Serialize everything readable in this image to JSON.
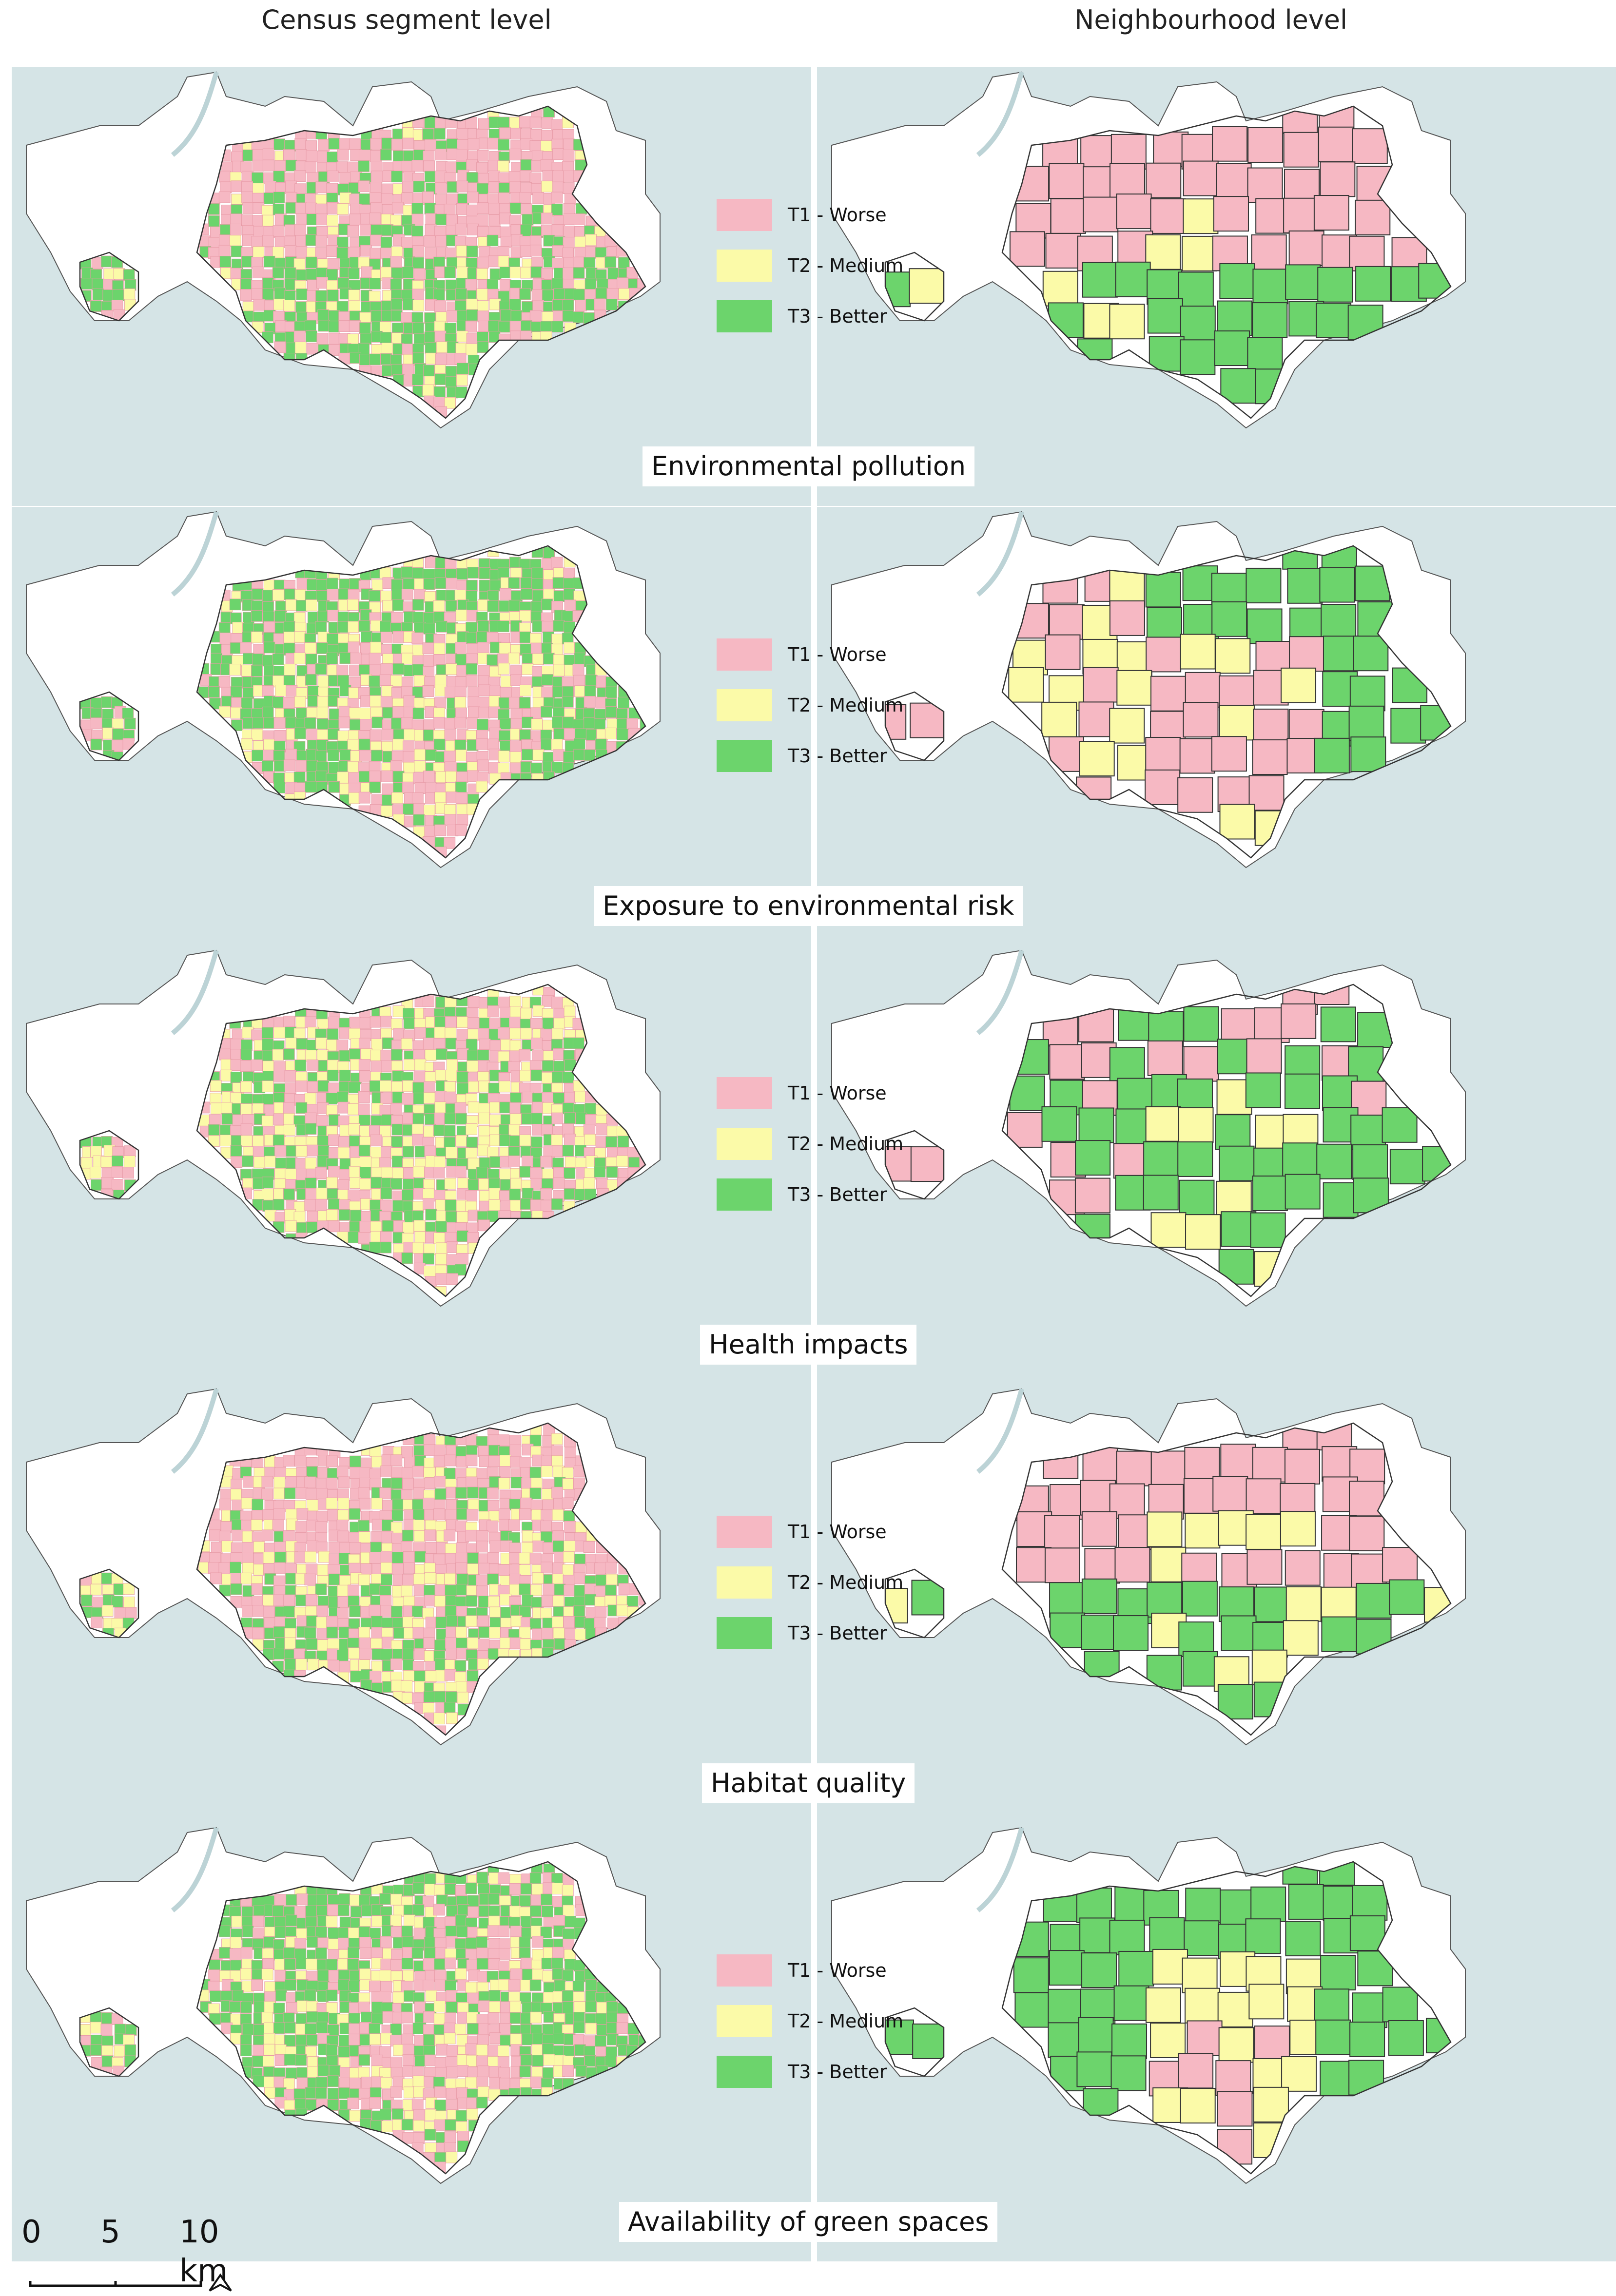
{
  "figure": {
    "column_headers": {
      "left": "Census segment level",
      "right": "Neighbourhood level"
    },
    "legend": {
      "items": [
        {
          "label": "T1 - Worse",
          "color": "#f6b8c3"
        },
        {
          "label": "T2 - Medium",
          "color": "#fbfaa8"
        },
        {
          "label": "T3 - Better",
          "color": "#6cd46c"
        }
      ]
    },
    "background_colors": {
      "water": "#d5e4e6",
      "land": "#ffffff",
      "outline": "#555555"
    },
    "rows": [
      {
        "title": "Environmental pollution",
        "left_dominant": "mixed-pink-green",
        "right_pattern": "pink-north-green-south"
      },
      {
        "title": "Exposure to environmental risk",
        "left_dominant": "mixed-green-pink",
        "right_pattern": "green-north-pink-center"
      },
      {
        "title": "Health impacts",
        "left_dominant": "mixed-all",
        "right_pattern": "mixed-pink-green-yellow"
      },
      {
        "title": "Habitat quality",
        "left_dominant": "mixed-pink-yellow",
        "right_pattern": "pink-north-green-south"
      },
      {
        "title": "Availability of green spaces",
        "left_dominant": "mixed-green-pink",
        "right_pattern": "green-north-pink-south"
      }
    ],
    "scale_bar": {
      "labels": [
        "0",
        "5",
        "10 km"
      ],
      "north_arrow": "north-arrow-icon"
    }
  }
}
